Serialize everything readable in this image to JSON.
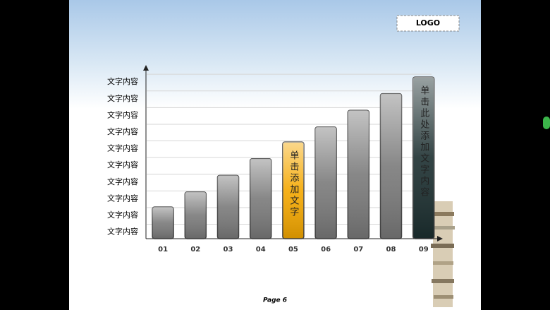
{
  "slide": {
    "logo": "LOGO",
    "page": "Page 6"
  },
  "chart_data": {
    "type": "bar",
    "categories": [
      "01",
      "02",
      "03",
      "04",
      "05",
      "06",
      "07",
      "08",
      "09"
    ],
    "values": [
      2.5,
      3.4,
      4.4,
      5.4,
      6.4,
      7.3,
      8.3,
      9.3,
      10.3
    ],
    "colors": [
      "#7a7a7a",
      "#7a7a7a",
      "#7a7a7a",
      "#7a7a7a",
      "#f5a800",
      "#7a7a7a",
      "#7a7a7a",
      "#7a7a7a",
      "#1c2f30"
    ],
    "annotations": [
      "单击添加文字",
      "单击此处添加文字内容"
    ],
    "ylim": [
      0.6,
      10.6
    ],
    "yticks": [
      {
        "value": 1,
        "label": "文字内容"
      },
      {
        "value": 2,
        "label": "文字内容"
      },
      {
        "value": 3,
        "label": "文字内容"
      },
      {
        "value": 4,
        "label": "文字内容"
      },
      {
        "value": 5,
        "label": "文字内容"
      },
      {
        "value": 6,
        "label": "文字内容"
      },
      {
        "value": 7,
        "label": "文字内容"
      },
      {
        "value": 8,
        "label": "文字内容"
      },
      {
        "value": 9,
        "label": "文字内容"
      },
      {
        "value": 10,
        "label": "文字内容"
      }
    ],
    "grid": true
  }
}
